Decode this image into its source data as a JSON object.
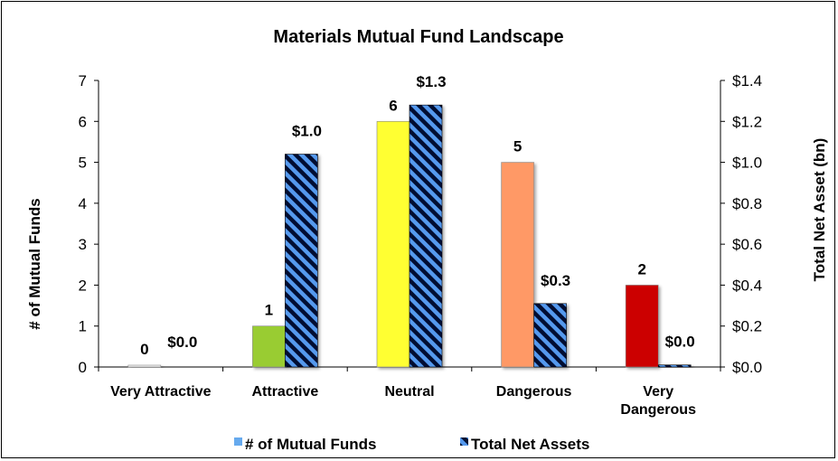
{
  "chart_data": {
    "type": "bar",
    "title": "Materials Mutual Fund Landscape",
    "categories": [
      "Very Attractive",
      "Attractive",
      "Neutral",
      "Dangerous",
      "Very Dangerous"
    ],
    "category_lines": [
      [
        "Very Attractive"
      ],
      [
        "Attractive"
      ],
      [
        "Neutral"
      ],
      [
        "Dangerous"
      ],
      [
        "Very",
        "Dangerous"
      ]
    ],
    "ylabel": "# of Mutual Funds",
    "y2label": "Total Net Asset (bn)",
    "ylim": [
      0,
      7
    ],
    "y2lim": [
      0,
      1.4
    ],
    "yticks": [
      "0",
      "1",
      "2",
      "3",
      "4",
      "5",
      "6",
      "7"
    ],
    "y2ticks": [
      "$0.0",
      "$0.2",
      "$0.4",
      "$0.6",
      "$0.8",
      "$1.0",
      "$1.2",
      "$1.4"
    ],
    "series": [
      {
        "name": "# of Mutual Funds",
        "axis": "left",
        "values": [
          0,
          1,
          6,
          5,
          2
        ],
        "labels": [
          "0",
          "1",
          "6",
          "5",
          "2"
        ],
        "colors": [
          "#f3f3f3",
          "#99cc33",
          "#ffff33",
          "#ff9966",
          "#cc0000"
        ]
      },
      {
        "name": "Total Net Assets",
        "axis": "right",
        "values": [
          0.0,
          1.04,
          1.28,
          0.31,
          0.01
        ],
        "labels": [
          "$0.0",
          "$1.0",
          "$1.3",
          "$0.3",
          "$0.0"
        ],
        "pattern": "navy-blue diagonal stripes"
      }
    ],
    "legend": {
      "position": "bottom"
    },
    "colors": {
      "stripe_dark": "#001133",
      "stripe_light": "#5599ee",
      "legend_swatch": "#66aaee"
    }
  }
}
